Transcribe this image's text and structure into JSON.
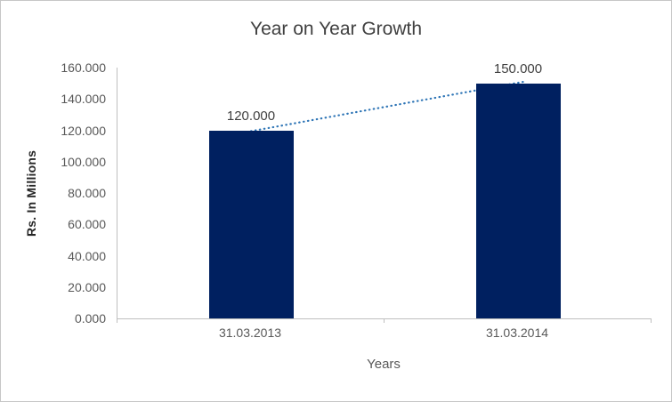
{
  "chart_data": {
    "type": "bar",
    "title": "Year on Year Growth",
    "xlabel": "Years",
    "ylabel": "Rs. In Millions",
    "categories": [
      "31.03.2013",
      "31.03.2014"
    ],
    "values": [
      120,
      150
    ],
    "data_labels": [
      "120.000",
      "150.000"
    ],
    "ytick_labels": [
      "0.000",
      "20.000",
      "40.000",
      "60.000",
      "80.000",
      "100.000",
      "120.000",
      "140.000",
      "160.000"
    ],
    "ylim": [
      0,
      160
    ],
    "ytick_step": 20,
    "grid": false,
    "legend_position": "none",
    "bar_color": "#002060",
    "trendline_color": "#2e75b6",
    "axis_line_color": "#bfbfbf",
    "title_color": "#404040",
    "tick_label_color": "#595959"
  }
}
